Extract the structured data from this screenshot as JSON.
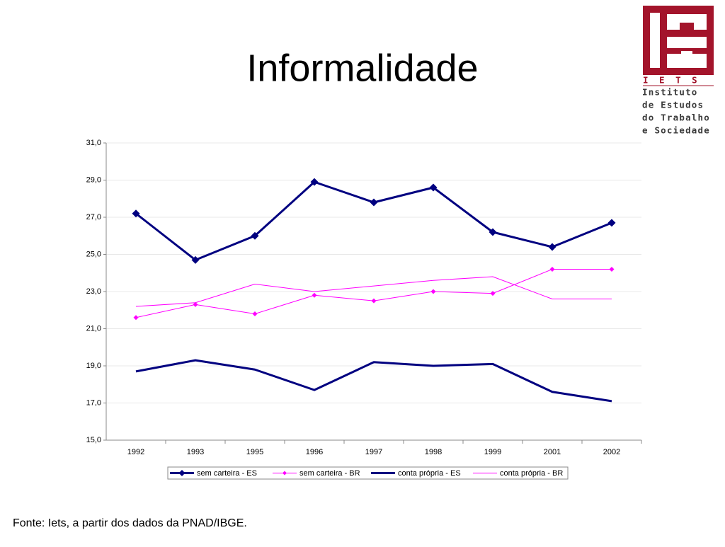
{
  "logo": {
    "acronym": "I E T S",
    "lines": [
      "Instituto",
      "de Estudos",
      "do Trabalho",
      "e Sociedade"
    ]
  },
  "footer": "Fonte: Iets, a partir dos dados da PNAD/IBGE.",
  "chart_data": {
    "type": "line",
    "title": "Informalidade",
    "categories": [
      "1992",
      "1993",
      "1995",
      "1996",
      "1997",
      "1998",
      "1999",
      "2001",
      "2002"
    ],
    "series": [
      {
        "name": "sem carteira - ES",
        "color": "#000080",
        "marker": "diamond",
        "width": 3,
        "values": [
          27.2,
          24.7,
          26.0,
          28.9,
          27.8,
          28.6,
          26.2,
          25.4,
          26.7
        ]
      },
      {
        "name": "sem carteira - BR",
        "color": "#ff00ff",
        "marker": "diamond",
        "width": 1,
        "values": [
          21.6,
          22.3,
          21.8,
          22.8,
          22.5,
          23.0,
          22.9,
          24.2,
          24.2
        ]
      },
      {
        "name": "conta própria - ES",
        "color": "#000080",
        "marker": "none",
        "width": 3,
        "values": [
          18.7,
          19.3,
          18.8,
          17.7,
          19.2,
          19.0,
          19.1,
          17.6,
          17.1
        ]
      },
      {
        "name": "conta própria - BR",
        "color": "#ff00ff",
        "marker": "none",
        "width": 1,
        "values": [
          22.2,
          22.4,
          23.4,
          23.0,
          23.3,
          23.6,
          23.8,
          22.6,
          22.6
        ]
      }
    ],
    "ylim": [
      15,
      31
    ],
    "yticks": [
      {
        "value": 15,
        "label": "15,0"
      },
      {
        "value": 17,
        "label": "17,0"
      },
      {
        "value": 19,
        "label": "19,0"
      },
      {
        "value": 21,
        "label": "21,0"
      },
      {
        "value": 23,
        "label": "23,0"
      },
      {
        "value": 25,
        "label": "25,0"
      },
      {
        "value": 27,
        "label": "27,0"
      },
      {
        "value": 29,
        "label": "29,0"
      },
      {
        "value": 31,
        "label": "31,0"
      }
    ],
    "grid": true,
    "legend": "bottom"
  }
}
